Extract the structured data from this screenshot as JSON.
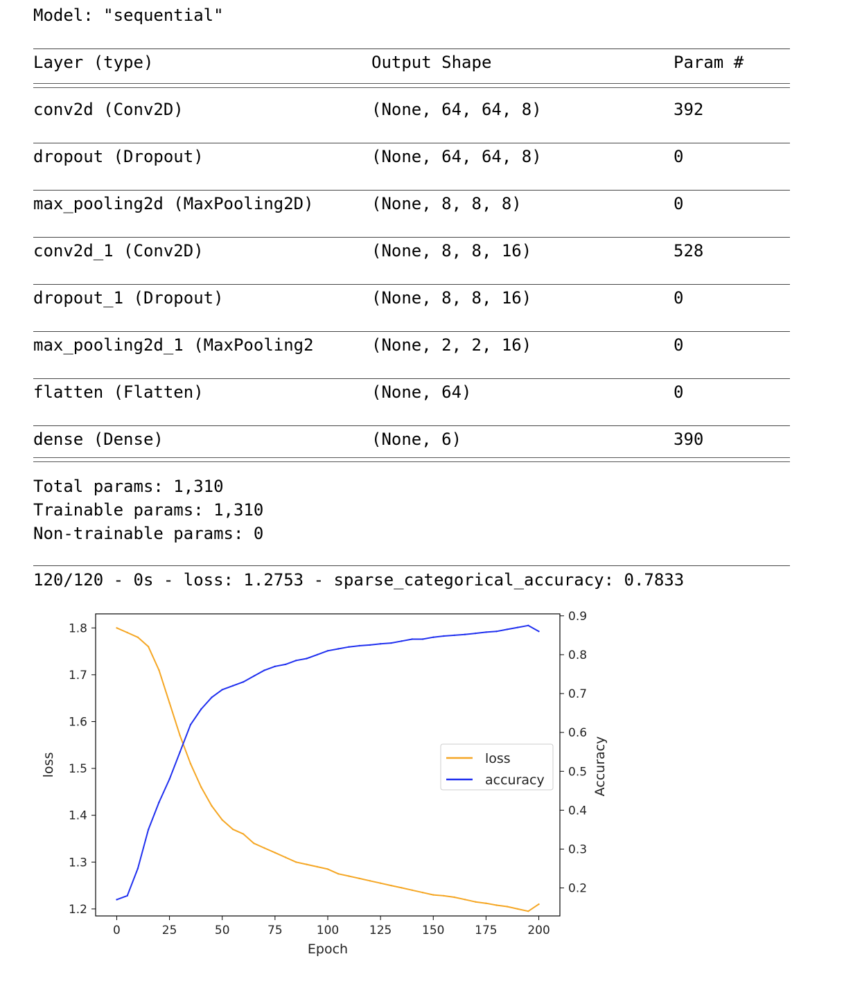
{
  "summary": {
    "model_line": "Model: \"sequential\"",
    "headers": {
      "layer": "Layer (type)",
      "shape": "Output Shape",
      "params": "Param #"
    },
    "rows": [
      {
        "layer": "conv2d (Conv2D)",
        "shape": "(None, 64, 64, 8)",
        "params": "392"
      },
      {
        "layer": "dropout (Dropout)",
        "shape": "(None, 64, 64, 8)",
        "params": "0"
      },
      {
        "layer": "max_pooling2d (MaxPooling2D)",
        "shape": "(None, 8, 8, 8)",
        "params": "0"
      },
      {
        "layer": "conv2d_1 (Conv2D)",
        "shape": "(None, 8, 8, 16)",
        "params": "528"
      },
      {
        "layer": "dropout_1 (Dropout)",
        "shape": "(None, 8, 8, 16)",
        "params": "0"
      },
      {
        "layer": "max_pooling2d_1 (MaxPooling2",
        "shape": "(None, 2, 2, 16)",
        "params": "0"
      },
      {
        "layer": "flatten (Flatten)",
        "shape": "(None, 64)",
        "params": "0"
      },
      {
        "layer": "dense (Dense)",
        "shape": "(None, 6)",
        "params": "390"
      }
    ],
    "total": "Total params: 1,310",
    "trainable": "Trainable params: 1,310",
    "non_trainable": "Non-trainable params: 0",
    "eval_line": "120/120 - 0s - loss: 1.2753 - sparse_categorical_accuracy: 0.7833"
  },
  "chart_data": {
    "type": "line",
    "x": [
      0,
      5,
      10,
      15,
      20,
      25,
      30,
      35,
      40,
      45,
      50,
      55,
      60,
      65,
      70,
      75,
      80,
      85,
      90,
      95,
      100,
      105,
      110,
      115,
      120,
      125,
      130,
      135,
      140,
      145,
      150,
      155,
      160,
      165,
      170,
      175,
      180,
      185,
      190,
      195,
      200
    ],
    "xlabel": "Epoch",
    "xticks": [
      0,
      25,
      50,
      75,
      100,
      125,
      150,
      175,
      200
    ],
    "xlim": [
      -10,
      210
    ],
    "series": [
      {
        "name": "loss",
        "axis": "left",
        "color": "#f5a623",
        "values": [
          1.8,
          1.79,
          1.78,
          1.76,
          1.71,
          1.64,
          1.57,
          1.51,
          1.46,
          1.42,
          1.39,
          1.37,
          1.36,
          1.34,
          1.33,
          1.32,
          1.31,
          1.3,
          1.295,
          1.29,
          1.285,
          1.275,
          1.27,
          1.265,
          1.26,
          1.255,
          1.25,
          1.245,
          1.24,
          1.235,
          1.23,
          1.228,
          1.225,
          1.22,
          1.215,
          1.212,
          1.208,
          1.205,
          1.2,
          1.195,
          1.21
        ]
      },
      {
        "name": "accuracy",
        "axis": "right",
        "color": "#1f2fef",
        "values": [
          0.17,
          0.18,
          0.25,
          0.35,
          0.42,
          0.48,
          0.55,
          0.62,
          0.66,
          0.69,
          0.71,
          0.72,
          0.73,
          0.745,
          0.76,
          0.77,
          0.775,
          0.785,
          0.79,
          0.8,
          0.81,
          0.815,
          0.82,
          0.823,
          0.825,
          0.828,
          0.83,
          0.835,
          0.84,
          0.84,
          0.845,
          0.848,
          0.85,
          0.852,
          0.855,
          0.858,
          0.86,
          0.865,
          0.87,
          0.875,
          0.86
        ]
      }
    ],
    "left_axis": {
      "label": "loss",
      "ylim": [
        1.185,
        1.83
      ],
      "ticks": [
        1.2,
        1.3,
        1.4,
        1.5,
        1.6,
        1.7,
        1.8
      ],
      "tick_labels": [
        "1.2",
        "1.3",
        "1.4",
        "1.5",
        "1.6",
        "1.7",
        "1.8"
      ]
    },
    "right_axis": {
      "label": "Accuracy",
      "ylim": [
        0.128,
        0.905
      ],
      "ticks": [
        0.2,
        0.3,
        0.4,
        0.5,
        0.6,
        0.7,
        0.8,
        0.9
      ],
      "tick_labels": [
        "0.2",
        "0.3",
        "0.4",
        "0.5",
        "0.6",
        "0.7",
        "0.8",
        "0.9"
      ]
    },
    "x_tick_labels": [
      "0",
      "25",
      "50",
      "75",
      "100",
      "125",
      "150",
      "175",
      "200"
    ],
    "legend": {
      "placement": "center-right",
      "entries": [
        "loss",
        "accuracy"
      ]
    },
    "grid": false
  }
}
